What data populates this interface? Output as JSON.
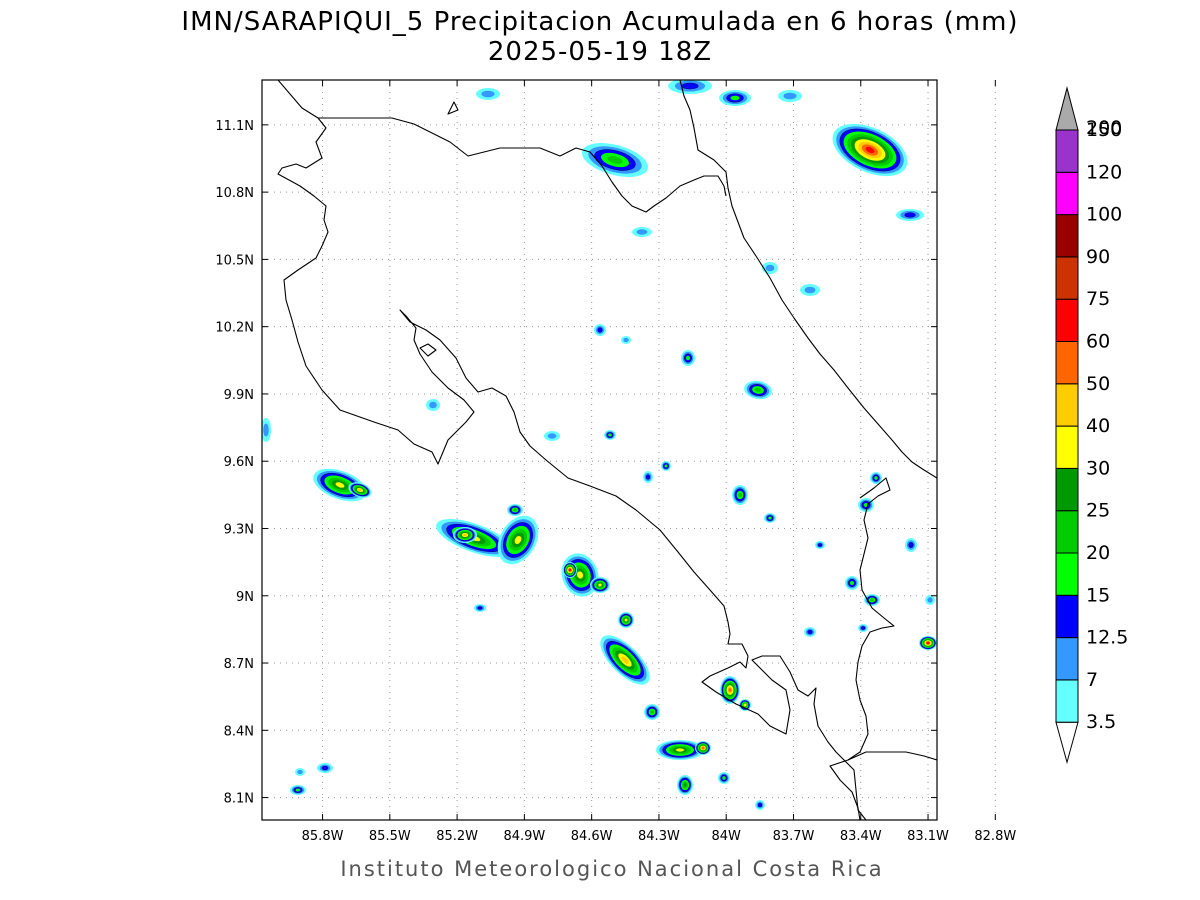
{
  "title": {
    "line1": "IMN/SARAPIQUI_5 Precipitacion Acumulada en 6 horas (mm)",
    "line2": "2025-05-19 18Z"
  },
  "credit": "Instituto Meteorologico Nacional Costa Rica",
  "map": {
    "lon_range": [
      -86.07,
      -83.06
    ],
    "lat_range": [
      8.0,
      11.3
    ],
    "x_ticks": [
      "85.8W",
      "85.5W",
      "85.2W",
      "84.9W",
      "84.6W",
      "84.3W",
      "84W",
      "83.7W",
      "83.4W",
      "83.1W",
      "82.8W"
    ],
    "y_ticks": [
      "8.1N",
      "8.4N",
      "8.7N",
      "9N",
      "9.3N",
      "9.6N",
      "9.9N",
      "10.2N",
      "10.5N",
      "10.8N",
      "11.1N"
    ],
    "grid": true
  },
  "colorbar": {
    "labels": [
      "3.5",
      "7",
      "12.5",
      "15",
      "20",
      "25",
      "30",
      "40",
      "50",
      "60",
      "75",
      "90",
      "100",
      "120",
      "150",
      "200"
    ],
    "colors": [
      "#66ffff",
      "#3399ff",
      "#0000ff",
      "#00ff00",
      "#00cc00",
      "#009900",
      "#ffff00",
      "#ffcc00",
      "#ff6600",
      "#ff0000",
      "#cc3300",
      "#990000",
      "#ff00ff",
      "#9933cc",
      "#f0f0f0",
      "#aaaaaa"
    ]
  }
}
